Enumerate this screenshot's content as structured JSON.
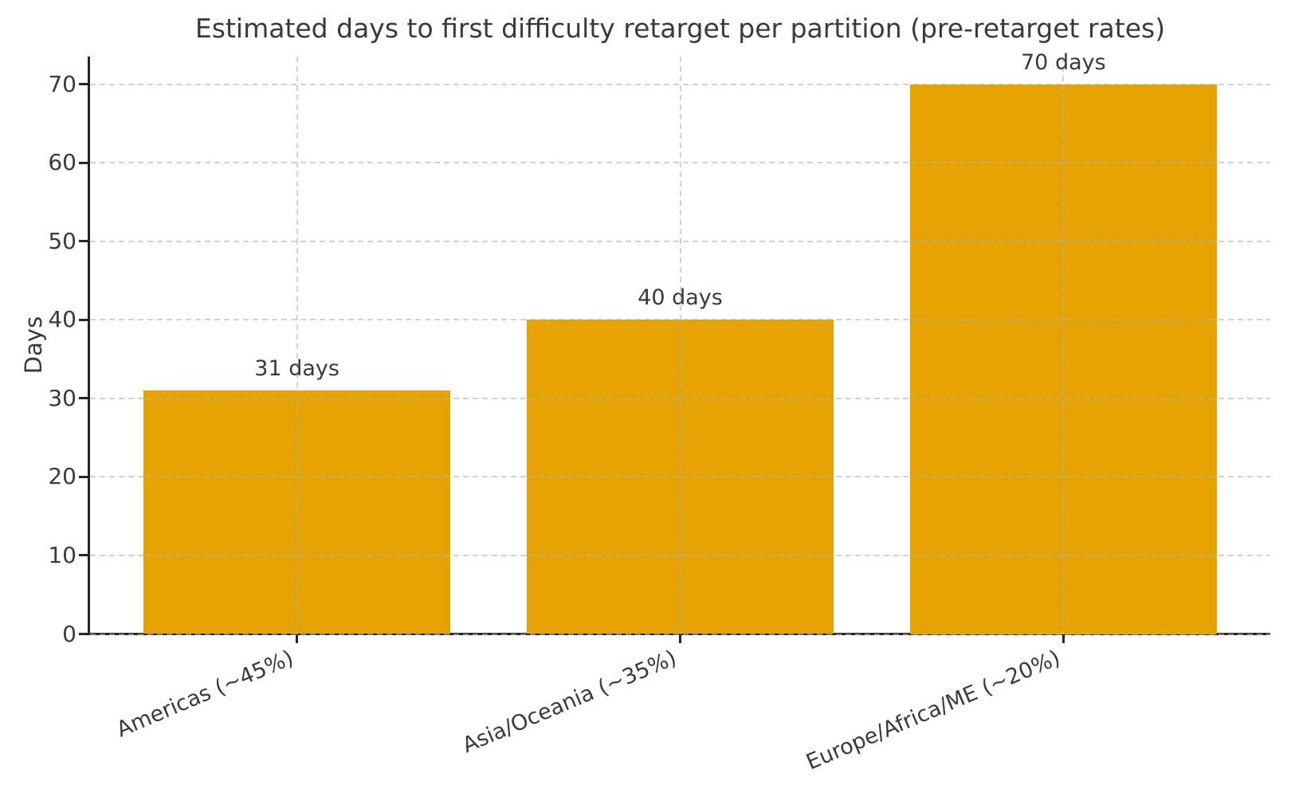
{
  "chart_data": {
    "type": "bar",
    "title": "Estimated days to first difficulty retarget per partition (pre-retarget rates)",
    "ylabel": "Days",
    "xlabel": "",
    "categories": [
      "Americas (~45%)",
      "Asia/Oceania (~35%)",
      "Europe/Africa/ME (~20%)"
    ],
    "values": [
      31,
      40,
      70
    ],
    "bar_labels": [
      "31 days",
      "40 days",
      "70 days"
    ],
    "yticks": [
      0,
      10,
      20,
      30,
      40,
      50,
      60,
      70
    ],
    "ylim": [
      0,
      73.5
    ],
    "bar_width_fraction": 0.8,
    "grid": true,
    "grid_style": "dashed",
    "legend": "none",
    "colors": {
      "bar": "#E5A303",
      "text": "#3a3a3a",
      "spine": "#262626",
      "grid": "#b2b2b2",
      "background": "#ffffff"
    }
  }
}
